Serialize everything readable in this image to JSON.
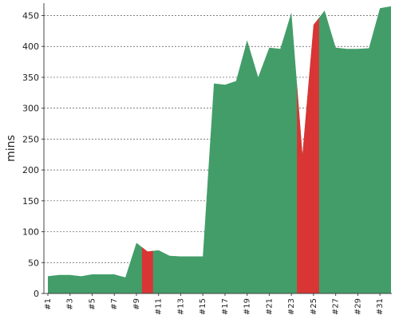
{
  "chart_data": {
    "type": "area",
    "title": "",
    "xlabel": "",
    "ylabel": "mins",
    "ylim": [
      0,
      470
    ],
    "yticks": [
      0,
      50,
      100,
      150,
      200,
      250,
      300,
      350,
      400,
      450
    ],
    "grid": true,
    "x": [
      1,
      2,
      3,
      4,
      5,
      6,
      7,
      8,
      9,
      10,
      11,
      12,
      13,
      14,
      15,
      16,
      17,
      18,
      19,
      20,
      21,
      22,
      23,
      24,
      25,
      26,
      27,
      28,
      29,
      30,
      31,
      32
    ],
    "xtick_labels": [
      "#1",
      "#3",
      "#5",
      "#7",
      "#9",
      "#11",
      "#13",
      "#15",
      "#17",
      "#19",
      "#21",
      "#23",
      "#25",
      "#27",
      "#29",
      "#31"
    ],
    "xtick_values": [
      1,
      3,
      5,
      7,
      9,
      11,
      13,
      15,
      17,
      19,
      21,
      23,
      25,
      27,
      29,
      31
    ],
    "series": [
      {
        "values": [
          28,
          30,
          30,
          28,
          31,
          31,
          31,
          26,
          82,
          68,
          70,
          61,
          60,
          60,
          60,
          340,
          338,
          344,
          410,
          350,
          398,
          396,
          455,
          225,
          435,
          458,
          398,
          396,
          396,
          397,
          462,
          465
        ]
      }
    ],
    "highlight_ranges": [
      [
        9.5,
        10.5
      ],
      [
        23.5,
        25.5
      ]
    ],
    "colors": {
      "fill": "#439d69",
      "highlight": "#d93535"
    }
  }
}
